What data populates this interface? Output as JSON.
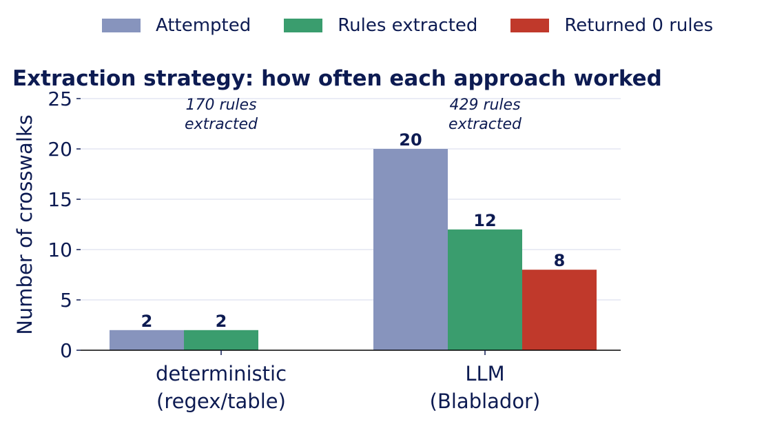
{
  "chart_data": {
    "type": "bar",
    "title": "Extraction strategy: how often each approach worked",
    "ylabel": "Number of crosswalks",
    "xlabel": "",
    "ylim": [
      0,
      25
    ],
    "yticks": [
      0,
      5,
      10,
      15,
      20,
      25
    ],
    "grid": "horizontal",
    "legend_position": "top",
    "categories": [
      [
        "deterministic",
        "(regex/table)"
      ],
      [
        "LLM",
        "(Blablador)"
      ]
    ],
    "series": [
      {
        "name": "Attempted",
        "color": "#8794bd",
        "values": [
          2,
          20
        ]
      },
      {
        "name": "Rules extracted",
        "color": "#3a9d6e",
        "values": [
          2,
          12
        ]
      },
      {
        "name": "Returned 0 rules",
        "color": "#c0392b",
        "values": [
          0,
          8
        ]
      }
    ],
    "annotations": [
      {
        "category": 0,
        "lines": [
          "170 rules",
          "extracted"
        ]
      },
      {
        "category": 1,
        "lines": [
          "429 rules",
          "extracted"
        ]
      }
    ]
  }
}
